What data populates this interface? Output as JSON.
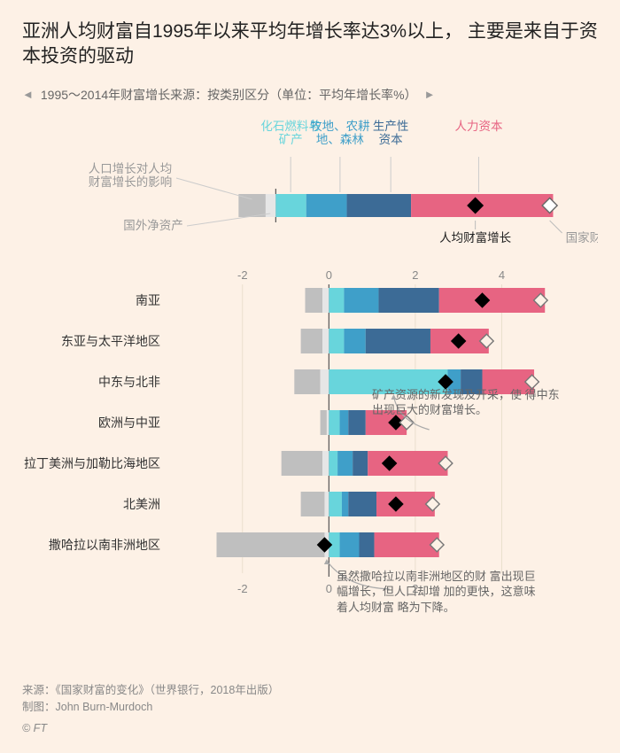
{
  "title": "亚洲人均财富自1995年以来平均年增长率达3%以上，\n主要是来自于资本投资的驱动",
  "subtitle": "1995～2014年财富增长来源：按类别区分（单位：平均年增长率%）",
  "colors": {
    "bg": "#fdf1e6",
    "pop": "#bfbfbf",
    "foreign": "#e6e6e6",
    "fossil": "#68d5dc",
    "land": "#3f9fc9",
    "capital": "#3c6b96",
    "human": "#e76482",
    "text": "#333",
    "muted": "#888"
  },
  "legend": {
    "fossil": "化石燃料与\n矿产",
    "land": "牧地、农耕\n地、森林",
    "capital": "生产性\n资本",
    "human": "人力资本",
    "pop": "人口增长对人均\n财富增长的影响",
    "foreign": "国外净资产",
    "percap": "人均财富增长",
    "national": "国家财富增长"
  },
  "legend_bar": {
    "segments": [
      {
        "key": "pop",
        "start": -0.55,
        "end": -0.15
      },
      {
        "key": "foreign",
        "start": -0.15,
        "end": 0
      },
      {
        "key": "fossil",
        "start": 0,
        "end": 0.45
      },
      {
        "key": "land",
        "start": 0.45,
        "end": 1.05
      },
      {
        "key": "capital",
        "start": 1.05,
        "end": 2.0
      },
      {
        "key": "human",
        "start": 2.0,
        "end": 4.1
      }
    ],
    "percap_marker": 2.95,
    "national_marker": 4.05
  },
  "x_domain_legend": [
    -1,
    4.5
  ],
  "x_domain_main": [
    -3,
    5.2
  ],
  "ticks_top": [
    -2,
    0,
    2,
    4
  ],
  "ticks_bottom": [
    -2,
    0,
    2
  ],
  "rows": [
    {
      "label": "南亚",
      "segments": [
        {
          "k": "pop",
          "s": -0.55,
          "e": -0.15
        },
        {
          "k": "foreign",
          "s": -0.15,
          "e": 0
        },
        {
          "k": "fossil",
          "s": 0,
          "e": 0.35
        },
        {
          "k": "land",
          "s": 0.35,
          "e": 1.15
        },
        {
          "k": "capital",
          "s": 1.15,
          "e": 2.55
        },
        {
          "k": "human",
          "s": 2.55,
          "e": 5.0
        }
      ],
      "percap": 3.55,
      "national": 4.9
    },
    {
      "label": "东亚与太平洋地区",
      "segments": [
        {
          "k": "pop",
          "s": -0.65,
          "e": -0.15
        },
        {
          "k": "foreign",
          "s": -0.15,
          "e": 0
        },
        {
          "k": "fossil",
          "s": 0,
          "e": 0.35
        },
        {
          "k": "land",
          "s": 0.35,
          "e": 0.85
        },
        {
          "k": "capital",
          "s": 0.85,
          "e": 2.35
        },
        {
          "k": "human",
          "s": 2.35,
          "e": 3.7
        }
      ],
      "percap": 3.0,
      "national": 3.65
    },
    {
      "label": "中东与北非",
      "segments": [
        {
          "k": "pop",
          "s": -0.8,
          "e": -0.2
        },
        {
          "k": "foreign",
          "s": -0.2,
          "e": 0
        },
        {
          "k": "fossil",
          "s": 0,
          "e": 2.75
        },
        {
          "k": "land",
          "s": 2.75,
          "e": 3.05
        },
        {
          "k": "capital",
          "s": 3.05,
          "e": 3.55
        },
        {
          "k": "human",
          "s": 3.55,
          "e": 4.75
        }
      ],
      "percap": 2.7,
      "national": 4.7
    },
    {
      "label": "欧洲与中亚",
      "segments": [
        {
          "k": "pop",
          "s": -0.2,
          "e": -0.05
        },
        {
          "k": "foreign",
          "s": -0.05,
          "e": 0
        },
        {
          "k": "fossil",
          "s": 0,
          "e": 0.25
        },
        {
          "k": "land",
          "s": 0.25,
          "e": 0.45
        },
        {
          "k": "capital",
          "s": 0.45,
          "e": 0.85
        },
        {
          "k": "human",
          "s": 0.85,
          "e": 1.8
        }
      ],
      "percap": 1.55,
      "national": 1.8
    },
    {
      "label": "拉丁美洲与加勒比海地区",
      "segments": [
        {
          "k": "pop",
          "s": -1.1,
          "e": -0.15
        },
        {
          "k": "foreign",
          "s": -0.15,
          "e": 0
        },
        {
          "k": "fossil",
          "s": 0,
          "e": 0.2
        },
        {
          "k": "land",
          "s": 0.2,
          "e": 0.55
        },
        {
          "k": "capital",
          "s": 0.55,
          "e": 0.9
        },
        {
          "k": "human",
          "s": 0.9,
          "e": 2.75
        }
      ],
      "percap": 1.4,
      "national": 2.7
    },
    {
      "label": "北美洲",
      "segments": [
        {
          "k": "pop",
          "s": -0.65,
          "e": -0.1
        },
        {
          "k": "foreign",
          "s": -0.1,
          "e": 0
        },
        {
          "k": "fossil",
          "s": 0,
          "e": 0.3
        },
        {
          "k": "land",
          "s": 0.3,
          "e": 0.45
        },
        {
          "k": "capital",
          "s": 0.45,
          "e": 1.1
        },
        {
          "k": "human",
          "s": 1.1,
          "e": 2.45
        }
      ],
      "percap": 1.55,
      "national": 2.4
    },
    {
      "label": "撒哈拉以南非洲地区",
      "segments": [
        {
          "k": "pop",
          "s": -2.6,
          "e": -0.1
        },
        {
          "k": "foreign",
          "s": -0.1,
          "e": 0
        },
        {
          "k": "fossil",
          "s": 0,
          "e": 0.25
        },
        {
          "k": "land",
          "s": 0.25,
          "e": 0.7
        },
        {
          "k": "capital",
          "s": 0.7,
          "e": 1.05
        },
        {
          "k": "human",
          "s": 1.05,
          "e": 2.55
        }
      ],
      "percap": -0.1,
      "national": 2.5
    }
  ],
  "annotations": {
    "mideast": "矿产资源的新发现及开采，使\n得中东出现巨大的财富增长。",
    "subsahara": "虽然撒哈拉以南非洲地区的财\n富出现巨幅增长，但人口却增\n加的更快，这意味着人均财富\n略为下降。"
  },
  "source": "来源：《国家财富的变化》（世界银行，2018年出版）",
  "author": "制图：John Burn-Murdoch",
  "copyright": "© FT"
}
